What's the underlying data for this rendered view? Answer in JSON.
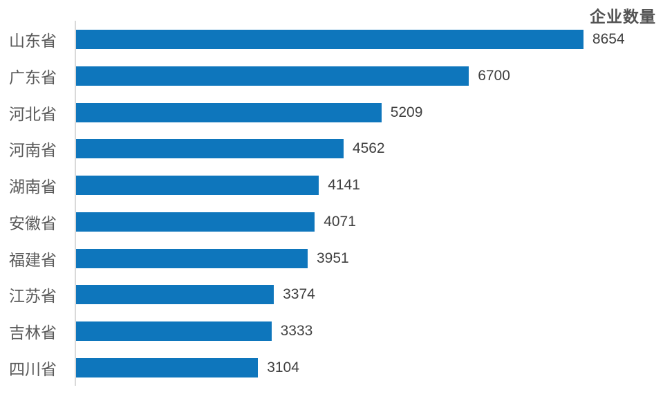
{
  "chart_data": {
    "type": "bar",
    "orientation": "horizontal",
    "title": "企业数量",
    "categories": [
      "山东省",
      "广东省",
      "河北省",
      "河南省",
      "湖南省",
      "安徽省",
      "福建省",
      "江苏省",
      "吉林省",
      "四川省"
    ],
    "values": [
      8654,
      6700,
      5209,
      4562,
      4141,
      4071,
      3951,
      3374,
      3333,
      3104
    ],
    "xlim": [
      0,
      10000
    ],
    "grid": false,
    "value_labels_shown": true,
    "legend_position": "top-right",
    "bar_color": "#0E76BC",
    "axis_line_color": "#D9D9D9",
    "title_color": "#535353",
    "category_label_color": "#595959",
    "value_label_color": "#404040",
    "background_color": "#FFFFFF"
  }
}
